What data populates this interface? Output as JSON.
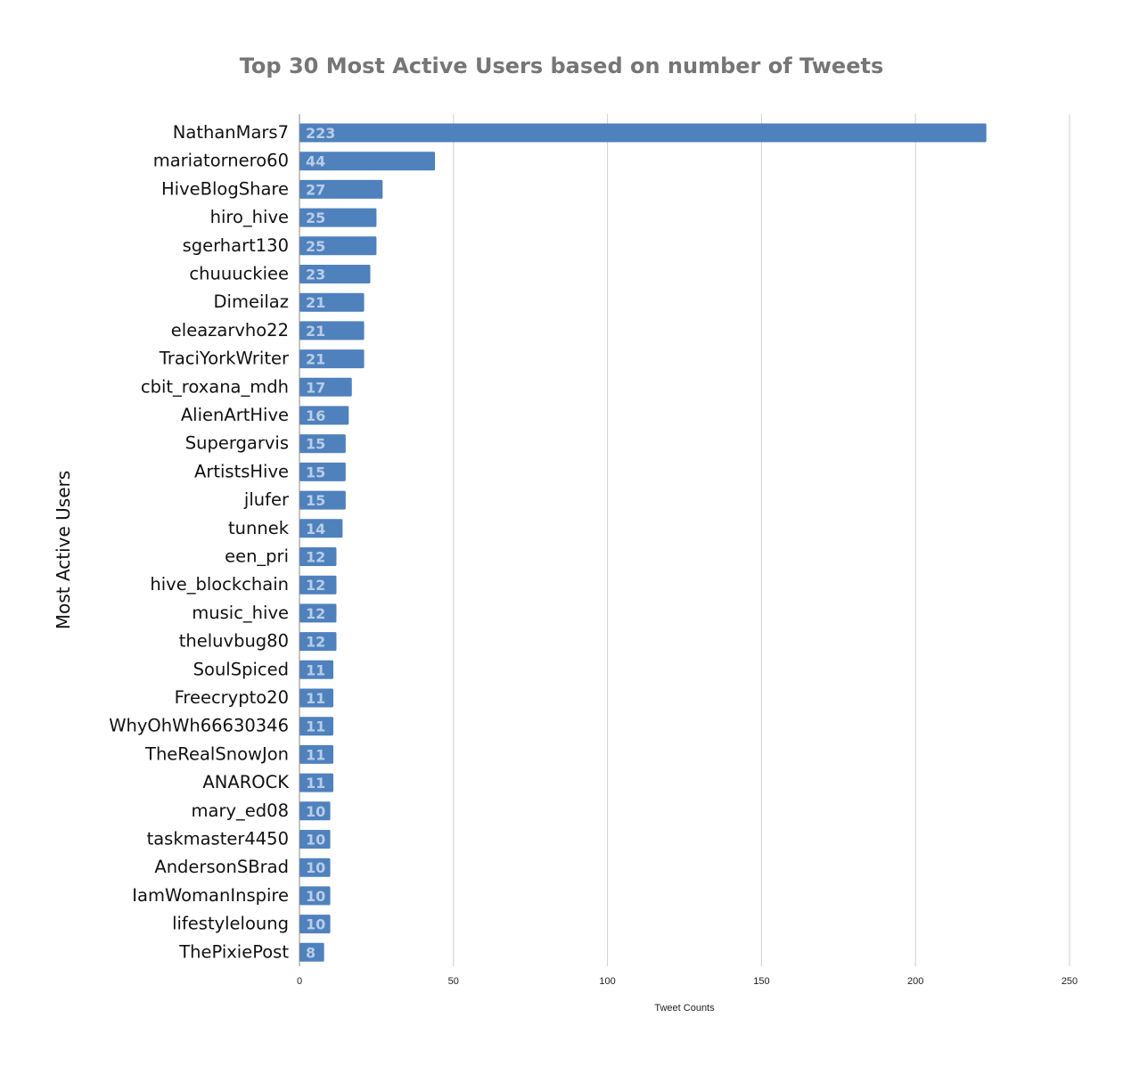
{
  "chart_data": {
    "type": "bar",
    "orientation": "horizontal",
    "title": "Top 30 Most Active Users based on number of Tweets",
    "xlabel": "Tweet Counts",
    "ylabel": "Most Active Users",
    "xlim": [
      0,
      250
    ],
    "xticks": [
      0,
      50,
      100,
      150,
      200,
      250
    ],
    "grid": true,
    "legend": "none",
    "bar_color": "#4f81bd",
    "data_label_color": "#b9cde6",
    "title_color": "#767676",
    "categories": [
      "NathanMars7",
      "mariatornero60",
      "HiveBlogShare",
      "hiro_hive",
      "sgerhart130",
      "chuuuckiee",
      "Dimeilaz",
      "eleazarvho22",
      "TraciYorkWriter",
      "cbit_roxana_mdh",
      "AlienArtHive",
      "Supergarvis",
      "ArtistsHive",
      "jlufer",
      "tunnek",
      "een_pri",
      "hive_blockchain",
      "music_hive",
      "theluvbug80",
      "SoulSpiced",
      "Freecrypto20",
      "WhyOhWh66630346",
      "TheRealSnowJon",
      "ANAROCK",
      "mary_ed08",
      "taskmaster4450",
      "AndersonSBrad",
      "IamWomanInspire",
      "lifestyleloung",
      "ThePixiePost"
    ],
    "values": [
      223,
      44,
      27,
      25,
      25,
      23,
      21,
      21,
      21,
      17,
      16,
      15,
      15,
      15,
      14,
      12,
      12,
      12,
      12,
      11,
      11,
      11,
      11,
      11,
      10,
      10,
      10,
      10,
      10,
      8
    ]
  }
}
